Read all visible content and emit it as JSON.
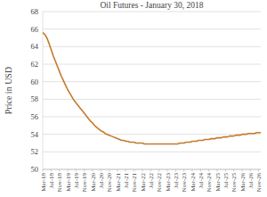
{
  "chart_data": {
    "type": "line",
    "title": "Oil Futures - January 30, 2018",
    "y_label": "Price in USD",
    "categories": [
      "Mar-18",
      null,
      null,
      null,
      "Jul-18",
      null,
      null,
      null,
      "Nov-18",
      null,
      null,
      null,
      "Mar-19",
      null,
      null,
      null,
      "Jul-19",
      null,
      null,
      null,
      "Nov-19",
      null,
      null,
      null,
      "Mar-20",
      null,
      null,
      null,
      "Jul-20",
      null,
      null,
      null,
      "Nov-20",
      null,
      null,
      null,
      "Mar-21",
      null,
      null,
      null,
      "Jul-21",
      null,
      null,
      null,
      "Nov-21",
      null,
      null,
      null,
      "Mar-22",
      null,
      null,
      null,
      "Jul-22",
      null,
      null,
      null,
      "Nov-22",
      null,
      null,
      null,
      "Mar-23",
      null,
      null,
      null,
      "Jul-23",
      null,
      null,
      null,
      "Nov-23",
      null,
      null,
      null,
      "Mar-24",
      null,
      null,
      null,
      "Jul-24",
      null,
      null,
      null,
      "Nov-24",
      null,
      null,
      null,
      "Mar-25",
      null,
      null,
      null,
      "Jul-25",
      null,
      null,
      null,
      "Nov-25",
      null,
      null,
      null,
      "Mar-26",
      null,
      null,
      null,
      "Jul-26",
      null,
      null,
      null,
      "Nov-26",
      null
    ],
    "values": [
      65.6,
      65.4,
      65.0,
      64.4,
      63.7,
      63.0,
      62.4,
      61.8,
      61.2,
      60.6,
      60.1,
      59.6,
      59.1,
      58.7,
      58.3,
      57.9,
      57.6,
      57.3,
      57.0,
      56.7,
      56.4,
      56.1,
      55.8,
      55.5,
      55.3,
      55.0,
      54.8,
      54.6,
      54.4,
      54.3,
      54.1,
      54.0,
      53.9,
      53.8,
      53.7,
      53.6,
      53.5,
      53.4,
      53.3,
      53.3,
      53.2,
      53.2,
      53.1,
      53.1,
      53.1,
      53.0,
      53.0,
      53.0,
      53.0,
      52.9,
      52.9,
      52.9,
      52.9,
      52.9,
      52.9,
      52.9,
      52.9,
      52.9,
      52.9,
      52.9,
      52.9,
      52.9,
      52.9,
      52.9,
      52.9,
      52.9,
      53.0,
      53.0,
      53.0,
      53.1,
      53.1,
      53.1,
      53.2,
      53.2,
      53.2,
      53.3,
      53.3,
      53.3,
      53.4,
      53.4,
      53.4,
      53.5,
      53.5,
      53.5,
      53.6,
      53.6,
      53.6,
      53.7,
      53.7,
      53.7,
      53.8,
      53.8,
      53.8,
      53.9,
      53.9,
      53.9,
      54.0,
      54.0,
      54.0,
      54.1,
      54.1,
      54.1,
      54.1,
      54.2,
      54.2,
      54.2
    ],
    "color": "#c47a2c",
    "ylim": [
      50,
      68
    ],
    "yticks": [
      50,
      52,
      54,
      56,
      58,
      60,
      62,
      64,
      66,
      68
    ],
    "grid": true
  }
}
